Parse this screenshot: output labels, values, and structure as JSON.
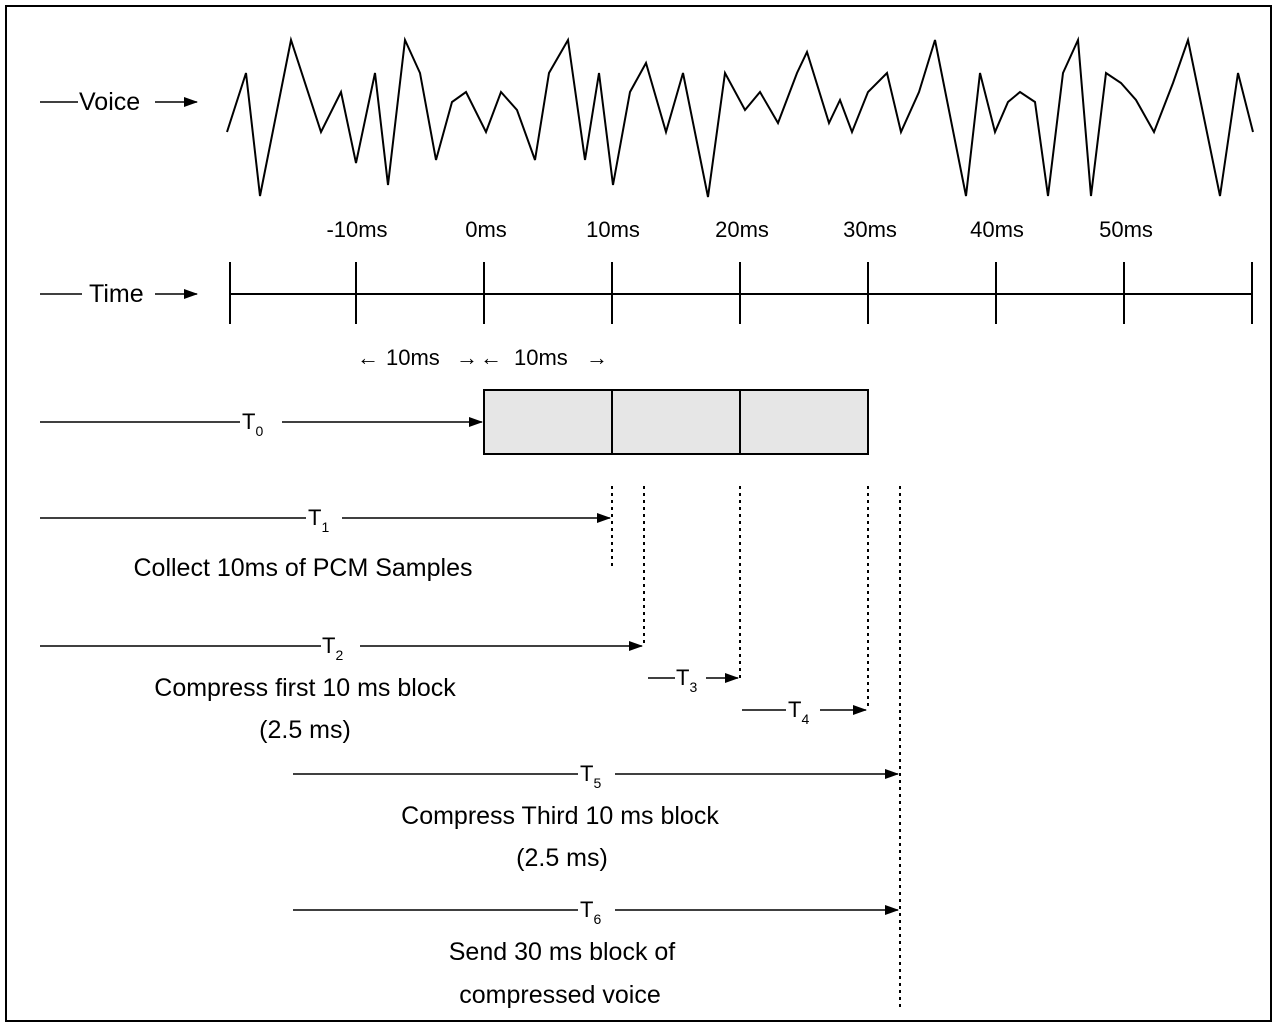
{
  "labels": {
    "voice": "Voice",
    "time": "Time",
    "span_a": "10ms",
    "span_b": "10ms"
  },
  "ticks": [
    "-10ms",
    "0ms",
    "10ms",
    "20ms",
    "30ms",
    "40ms",
    "50ms"
  ],
  "timings": {
    "t0": {
      "letter": "T",
      "sub": "0"
    },
    "t1": {
      "letter": "T",
      "sub": "1"
    },
    "t2": {
      "letter": "T",
      "sub": "2"
    },
    "t3": {
      "letter": "T",
      "sub": "3"
    },
    "t4": {
      "letter": "T",
      "sub": "4"
    },
    "t5": {
      "letter": "T",
      "sub": "5"
    },
    "t6": {
      "letter": "T",
      "sub": "6"
    }
  },
  "captions": {
    "collect": "Collect 10ms of PCM Samples",
    "compress_first_1": "Compress first 10 ms block",
    "compress_first_2": "(2.5 ms)",
    "compress_third_1": "Compress Third 10 ms block",
    "compress_third_2": "(2.5 ms)",
    "send_1": "Send 30 ms block of",
    "send_2": "compressed voice"
  },
  "colors": {
    "block_fill": "#e6e6e6",
    "ink": "#000000"
  }
}
